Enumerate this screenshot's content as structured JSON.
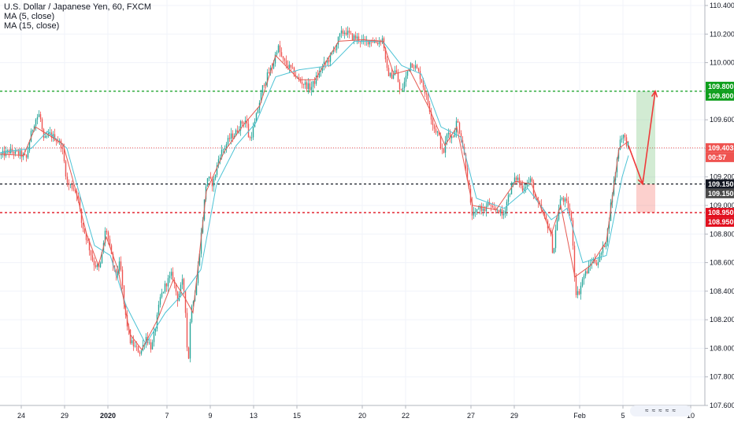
{
  "legend": {
    "symbol": "U.S. Dollar / Japanese Yen, 60, FXCM",
    "ma5": "MA (5, close)",
    "ma15": "MA (15, close)"
  },
  "colors": {
    "up": "#26a69a",
    "down": "#ef5350",
    "ma_fast": "#e55a52",
    "ma_slow": "#4dc3d5",
    "target_green": "#0e9f1c",
    "target_red": "#e1101f",
    "projection_arrow": "#ef3a3a",
    "current_line": "#ef5350"
  },
  "chart_data": {
    "type": "candlestick",
    "title": "U.S. Dollar / Japanese Yen, 60, FXCM",
    "ylim": [
      107.55,
      110.45
    ],
    "y_ticks": [
      "107.600",
      "107.800",
      "108.000",
      "108.200",
      "108.400",
      "108.600",
      "108.800",
      "109.000",
      "109.200",
      "109.400",
      "109.600",
      "109.800",
      "110.000",
      "110.200",
      "110.400"
    ],
    "x_ticks": [
      "24",
      "29",
      "2020",
      "7",
      "9",
      "13",
      "15",
      "20",
      "22",
      "27",
      "29",
      "Feb",
      "5",
      "10"
    ],
    "price_path": [
      {
        "x": 0,
        "p": 109.35
      },
      {
        "x": 12,
        "p": 109.38
      },
      {
        "x": 25,
        "p": 109.36
      },
      {
        "x": 33,
        "p": 109.33
      },
      {
        "x": 38,
        "p": 109.48
      },
      {
        "x": 44,
        "p": 109.6
      },
      {
        "x": 50,
        "p": 109.64
      },
      {
        "x": 55,
        "p": 109.45
      },
      {
        "x": 62,
        "p": 109.5
      },
      {
        "x": 70,
        "p": 109.47
      },
      {
        "x": 78,
        "p": 109.42
      },
      {
        "x": 85,
        "p": 109.15
      },
      {
        "x": 92,
        "p": 109.13
      },
      {
        "x": 98,
        "p": 109.08
      },
      {
        "x": 103,
        "p": 108.88
      },
      {
        "x": 110,
        "p": 108.76
      },
      {
        "x": 118,
        "p": 108.6
      },
      {
        "x": 126,
        "p": 108.55
      },
      {
        "x": 134,
        "p": 108.85
      },
      {
        "x": 140,
        "p": 108.67
      },
      {
        "x": 146,
        "p": 108.5
      },
      {
        "x": 152,
        "p": 108.6
      },
      {
        "x": 158,
        "p": 108.25
      },
      {
        "x": 165,
        "p": 108.05
      },
      {
        "x": 172,
        "p": 108.0
      },
      {
        "x": 178,
        "p": 107.97
      },
      {
        "x": 185,
        "p": 108.08
      },
      {
        "x": 192,
        "p": 108.0
      },
      {
        "x": 198,
        "p": 108.18
      },
      {
        "x": 203,
        "p": 108.35
      },
      {
        "x": 210,
        "p": 108.45
      },
      {
        "x": 218,
        "p": 108.52
      },
      {
        "x": 225,
        "p": 108.35
      },
      {
        "x": 232,
        "p": 108.48
      },
      {
        "x": 236,
        "p": 108.2
      },
      {
        "x": 238,
        "p": 107.82
      },
      {
        "x": 242,
        "p": 108.3
      },
      {
        "x": 248,
        "p": 108.4
      },
      {
        "x": 255,
        "p": 108.8
      },
      {
        "x": 262,
        "p": 109.2
      },
      {
        "x": 270,
        "p": 109.15
      },
      {
        "x": 278,
        "p": 109.35
      },
      {
        "x": 286,
        "p": 109.42
      },
      {
        "x": 292,
        "p": 109.48
      },
      {
        "x": 298,
        "p": 109.5
      },
      {
        "x": 305,
        "p": 109.57
      },
      {
        "x": 312,
        "p": 109.6
      },
      {
        "x": 316,
        "p": 109.45
      },
      {
        "x": 322,
        "p": 109.55
      },
      {
        "x": 328,
        "p": 109.7
      },
      {
        "x": 334,
        "p": 109.85
      },
      {
        "x": 340,
        "p": 109.92
      },
      {
        "x": 346,
        "p": 109.98
      },
      {
        "x": 352,
        "p": 110.12
      },
      {
        "x": 358,
        "p": 110.02
      },
      {
        "x": 364,
        "p": 109.98
      },
      {
        "x": 370,
        "p": 109.95
      },
      {
        "x": 378,
        "p": 109.88
      },
      {
        "x": 386,
        "p": 109.85
      },
      {
        "x": 394,
        "p": 109.82
      },
      {
        "x": 402,
        "p": 109.9
      },
      {
        "x": 410,
        "p": 109.98
      },
      {
        "x": 418,
        "p": 110.03
      },
      {
        "x": 426,
        "p": 110.12
      },
      {
        "x": 432,
        "p": 110.2
      },
      {
        "x": 438,
        "p": 110.22
      },
      {
        "x": 446,
        "p": 110.18
      },
      {
        "x": 454,
        "p": 110.17
      },
      {
        "x": 462,
        "p": 110.14
      },
      {
        "x": 470,
        "p": 110.16
      },
      {
        "x": 478,
        "p": 110.14
      },
      {
        "x": 486,
        "p": 110.17
      },
      {
        "x": 490,
        "p": 109.95
      },
      {
        "x": 496,
        "p": 109.9
      },
      {
        "x": 502,
        "p": 109.95
      },
      {
        "x": 508,
        "p": 109.78
      },
      {
        "x": 514,
        "p": 109.88
      },
      {
        "x": 520,
        "p": 110.0
      },
      {
        "x": 526,
        "p": 109.98
      },
      {
        "x": 532,
        "p": 109.92
      },
      {
        "x": 538,
        "p": 109.82
      },
      {
        "x": 544,
        "p": 109.7
      },
      {
        "x": 550,
        "p": 109.55
      },
      {
        "x": 556,
        "p": 109.5
      },
      {
        "x": 562,
        "p": 109.35
      },
      {
        "x": 568,
        "p": 109.52
      },
      {
        "x": 574,
        "p": 109.47
      },
      {
        "x": 580,
        "p": 109.6
      },
      {
        "x": 586,
        "p": 109.45
      },
      {
        "x": 592,
        "p": 109.25
      },
      {
        "x": 598,
        "p": 108.95
      },
      {
        "x": 602,
        "p": 108.92
      },
      {
        "x": 608,
        "p": 109.0
      },
      {
        "x": 614,
        "p": 108.96
      },
      {
        "x": 620,
        "p": 109.02
      },
      {
        "x": 626,
        "p": 108.95
      },
      {
        "x": 632,
        "p": 108.98
      },
      {
        "x": 638,
        "p": 108.92
      },
      {
        "x": 644,
        "p": 109.05
      },
      {
        "x": 650,
        "p": 109.15
      },
      {
        "x": 656,
        "p": 109.2
      },
      {
        "x": 662,
        "p": 109.12
      },
      {
        "x": 668,
        "p": 109.15
      },
      {
        "x": 674,
        "p": 109.18
      },
      {
        "x": 680,
        "p": 109.02
      },
      {
        "x": 686,
        "p": 108.98
      },
      {
        "x": 692,
        "p": 108.9
      },
      {
        "x": 698,
        "p": 108.82
      },
      {
        "x": 702,
        "p": 108.65
      },
      {
        "x": 706,
        "p": 108.88
      },
      {
        "x": 712,
        "p": 109.06
      },
      {
        "x": 718,
        "p": 109.02
      },
      {
        "x": 722,
        "p": 108.98
      },
      {
        "x": 726,
        "p": 108.85
      },
      {
        "x": 730,
        "p": 108.4
      },
      {
        "x": 734,
        "p": 108.38
      },
      {
        "x": 740,
        "p": 108.5
      },
      {
        "x": 746,
        "p": 108.55
      },
      {
        "x": 752,
        "p": 108.62
      },
      {
        "x": 758,
        "p": 108.6
      },
      {
        "x": 764,
        "p": 108.68
      },
      {
        "x": 770,
        "p": 108.78
      },
      {
        "x": 776,
        "p": 109.05
      },
      {
        "x": 782,
        "p": 109.28
      },
      {
        "x": 786,
        "p": 109.45
      },
      {
        "x": 790,
        "p": 109.5
      },
      {
        "x": 794,
        "p": 109.45
      },
      {
        "x": 798,
        "p": 109.42
      }
    ],
    "ma5_path": [
      {
        "x": 0,
        "p": 109.36
      },
      {
        "x": 30,
        "p": 109.35
      },
      {
        "x": 45,
        "p": 109.55
      },
      {
        "x": 60,
        "p": 109.5
      },
      {
        "x": 80,
        "p": 109.43
      },
      {
        "x": 95,
        "p": 109.13
      },
      {
        "x": 110,
        "p": 108.8
      },
      {
        "x": 125,
        "p": 108.58
      },
      {
        "x": 135,
        "p": 108.78
      },
      {
        "x": 150,
        "p": 108.55
      },
      {
        "x": 165,
        "p": 108.1
      },
      {
        "x": 180,
        "p": 107.99
      },
      {
        "x": 200,
        "p": 108.2
      },
      {
        "x": 220,
        "p": 108.48
      },
      {
        "x": 235,
        "p": 108.35
      },
      {
        "x": 245,
        "p": 108.25
      },
      {
        "x": 262,
        "p": 109.1
      },
      {
        "x": 285,
        "p": 109.38
      },
      {
        "x": 310,
        "p": 109.57
      },
      {
        "x": 330,
        "p": 109.7
      },
      {
        "x": 350,
        "p": 110.05
      },
      {
        "x": 380,
        "p": 109.88
      },
      {
        "x": 400,
        "p": 109.88
      },
      {
        "x": 430,
        "p": 110.15
      },
      {
        "x": 460,
        "p": 110.16
      },
      {
        "x": 486,
        "p": 110.15
      },
      {
        "x": 500,
        "p": 109.92
      },
      {
        "x": 520,
        "p": 109.95
      },
      {
        "x": 545,
        "p": 109.68
      },
      {
        "x": 565,
        "p": 109.42
      },
      {
        "x": 580,
        "p": 109.55
      },
      {
        "x": 600,
        "p": 109.0
      },
      {
        "x": 630,
        "p": 108.97
      },
      {
        "x": 655,
        "p": 109.17
      },
      {
        "x": 675,
        "p": 109.15
      },
      {
        "x": 700,
        "p": 108.8
      },
      {
        "x": 712,
        "p": 109.0
      },
      {
        "x": 730,
        "p": 108.5
      },
      {
        "x": 750,
        "p": 108.58
      },
      {
        "x": 770,
        "p": 108.75
      },
      {
        "x": 786,
        "p": 109.4
      },
      {
        "x": 798,
        "p": 109.45
      }
    ],
    "ma15_path": [
      {
        "x": 0,
        "p": 109.37
      },
      {
        "x": 40,
        "p": 109.4
      },
      {
        "x": 60,
        "p": 109.52
      },
      {
        "x": 85,
        "p": 109.4
      },
      {
        "x": 100,
        "p": 109.1
      },
      {
        "x": 120,
        "p": 108.72
      },
      {
        "x": 140,
        "p": 108.65
      },
      {
        "x": 160,
        "p": 108.3
      },
      {
        "x": 185,
        "p": 108.03
      },
      {
        "x": 210,
        "p": 108.25
      },
      {
        "x": 235,
        "p": 108.4
      },
      {
        "x": 255,
        "p": 108.55
      },
      {
        "x": 275,
        "p": 109.15
      },
      {
        "x": 300,
        "p": 109.42
      },
      {
        "x": 325,
        "p": 109.58
      },
      {
        "x": 350,
        "p": 109.9
      },
      {
        "x": 380,
        "p": 109.95
      },
      {
        "x": 420,
        "p": 109.98
      },
      {
        "x": 450,
        "p": 110.15
      },
      {
        "x": 486,
        "p": 110.15
      },
      {
        "x": 510,
        "p": 109.98
      },
      {
        "x": 535,
        "p": 109.92
      },
      {
        "x": 560,
        "p": 109.55
      },
      {
        "x": 585,
        "p": 109.48
      },
      {
        "x": 605,
        "p": 109.05
      },
      {
        "x": 640,
        "p": 108.98
      },
      {
        "x": 670,
        "p": 109.12
      },
      {
        "x": 700,
        "p": 108.9
      },
      {
        "x": 720,
        "p": 108.98
      },
      {
        "x": 740,
        "p": 108.6
      },
      {
        "x": 770,
        "p": 108.65
      },
      {
        "x": 790,
        "p": 109.2
      },
      {
        "x": 798,
        "p": 109.35
      }
    ],
    "levels": [
      {
        "price": 109.8,
        "color": "#0e9f1c",
        "style": "dashed"
      },
      {
        "price": 109.403,
        "color": "#ef5350",
        "style": "dotted"
      },
      {
        "price": 109.15,
        "color": "#131722",
        "style": "dashed"
      },
      {
        "price": 108.95,
        "color": "#e1101f",
        "style": "dashed"
      }
    ],
    "price_tags": [
      {
        "text": "109.800",
        "price": 109.8,
        "bg": "#0e9f1c",
        "fg": "#ffffff",
        "offset": -6
      },
      {
        "text": "109.800",
        "price": 109.8,
        "bg": "#0e9f1c",
        "fg": "#ffffff",
        "offset": 6
      },
      {
        "text": "109.403",
        "price": 109.403,
        "bg": "#ef5350",
        "fg": "#ffffff",
        "offset": 0
      },
      {
        "text": "00:57",
        "price": 109.403,
        "bg": "#ef5350",
        "fg": "#ffffff",
        "offset": 12
      },
      {
        "text": "109.150",
        "price": 109.15,
        "bg": "#131722",
        "fg": "#ffffff",
        "offset": 0
      },
      {
        "text": "109.150",
        "price": 109.15,
        "bg": "#4a4a4a",
        "fg": "#ffffff",
        "offset": 12
      },
      {
        "text": "108.950",
        "price": 108.95,
        "bg": "#e1101f",
        "fg": "#ffffff",
        "offset": 0
      },
      {
        "text": "108.950",
        "price": 108.95,
        "bg": "#e1101f",
        "fg": "#ffffff",
        "offset": 12
      }
    ],
    "position": {
      "entry": 109.15,
      "target": 109.8,
      "stop": 108.95,
      "entry_x": 808,
      "end_x": 832
    },
    "projection": [
      {
        "x": 798,
        "p": 109.42
      },
      {
        "x": 816,
        "p": 109.15
      },
      {
        "x": 832,
        "p": 109.8
      }
    ]
  }
}
